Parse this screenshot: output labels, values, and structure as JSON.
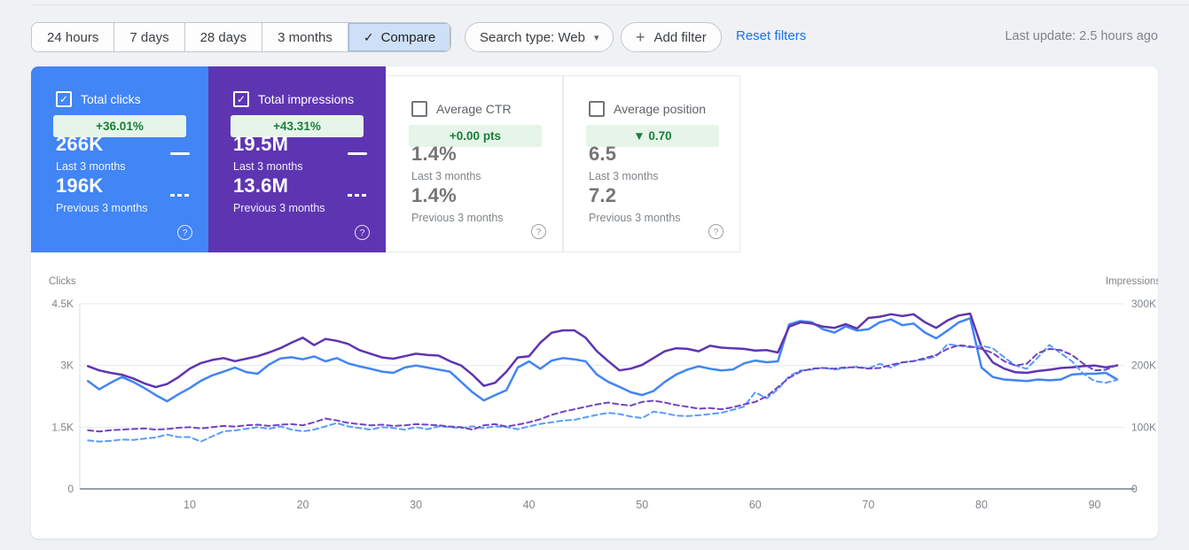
{
  "toolbar": {
    "date_ranges": [
      {
        "label": "24 hours",
        "selected": false
      },
      {
        "label": "7 days",
        "selected": false
      },
      {
        "label": "28 days",
        "selected": false
      },
      {
        "label": "3 months",
        "selected": false
      },
      {
        "label": "Compare",
        "selected": true,
        "check_icon": "✓"
      }
    ],
    "search_type_label": "Search type: Web",
    "search_type_caret": "▾",
    "add_filter_label": "Add filter",
    "add_filter_plus": "+",
    "reset_filters_label": "Reset filters",
    "last_update": "Last update: 2.5 hours ago"
  },
  "cards": [
    {
      "label": "Total clicks",
      "checked": true,
      "check_glyph": "✓",
      "delta": "+36.01%",
      "current": "266K",
      "current_label": "Last 3 months",
      "previous": "196K",
      "previous_label": "Previous 3 months",
      "accent": "#4285f4"
    },
    {
      "label": "Total impressions",
      "checked": true,
      "check_glyph": "✓",
      "delta": "+43.31%",
      "current": "19.5M",
      "current_label": "Last 3 months",
      "previous": "13.6M",
      "previous_label": "Previous 3 months",
      "accent": "#5e35b1"
    },
    {
      "label": "Average CTR",
      "checked": false,
      "check_glyph": "",
      "delta": "+0.00 pts",
      "current": "1.4%",
      "current_label": "Last 3 months",
      "previous": "1.4%",
      "previous_label": "Previous 3 months",
      "accent": "#ffffff"
    },
    {
      "label": "Average position",
      "checked": false,
      "check_glyph": "",
      "delta": "▼ 0.70",
      "current": "6.5",
      "current_label": "Last 3 months",
      "previous": "7.2",
      "previous_label": "Previous 3 months",
      "accent": "#ffffff"
    }
  ],
  "help_glyph": "?",
  "badge_colors": {
    "bg": "#e6f4ea",
    "text": "#188038"
  },
  "chart_data": {
    "type": "line",
    "x_unit": "day",
    "x_range": [
      1,
      92
    ],
    "x_ticks": [
      10,
      20,
      30,
      40,
      50,
      60,
      70,
      80,
      90
    ],
    "left_axis": {
      "label": "Clicks",
      "ticks": [
        "4.5K",
        "3K",
        "1.5K",
        "0"
      ],
      "max": 4500
    },
    "right_axis": {
      "label": "Impressions",
      "ticks": [
        "300K",
        "200K",
        "100K",
        "0"
      ],
      "max": 300
    },
    "grid": true,
    "legend_position": "none",
    "series": [
      {
        "name": "Clicks - Last 3 months",
        "axis": "left",
        "color": "#4285f4",
        "dash": false,
        "values": [
          2620,
          2420,
          2580,
          2720,
          2600,
          2450,
          2280,
          2130,
          2300,
          2450,
          2630,
          2760,
          2850,
          2950,
          2840,
          2800,
          3020,
          3170,
          3200,
          3150,
          3220,
          3100,
          3180,
          3050,
          2980,
          2920,
          2850,
          2820,
          2950,
          3000,
          2950,
          2900,
          2850,
          2600,
          2350,
          2150,
          2280,
          2400,
          2950,
          3100,
          2920,
          3120,
          3180,
          3150,
          3100,
          2780,
          2600,
          2480,
          2350,
          2280,
          2380,
          2600,
          2780,
          2900,
          2980,
          2920,
          2880,
          2900,
          3050,
          3120,
          3080,
          3100,
          4000,
          4080,
          4050,
          3880,
          3800,
          3950,
          3850,
          3880,
          4050,
          4120,
          3980,
          4020,
          3800,
          3660,
          3850,
          4050,
          4150,
          2950,
          2720,
          2660,
          2640,
          2620,
          2660,
          2640,
          2660,
          2780,
          2800,
          2800,
          2820,
          2660
        ]
      },
      {
        "name": "Impressions - Last 3 months",
        "axis": "right",
        "color": "#5e35b1",
        "dash": false,
        "values": [
          199,
          192,
          188,
          185,
          179,
          171,
          165,
          170,
          181,
          195,
          204,
          209,
          212,
          207,
          211,
          215,
          221,
          228,
          237,
          245,
          233,
          243,
          240,
          235,
          225,
          219,
          213,
          211,
          215,
          219,
          217,
          216,
          207,
          200,
          185,
          167,
          172,
          190,
          213,
          215,
          237,
          253,
          257,
          257,
          245,
          223,
          207,
          192,
          195,
          201,
          212,
          223,
          228,
          227,
          223,
          232,
          229,
          228,
          227,
          224,
          225,
          221,
          263,
          270,
          268,
          263,
          261,
          267,
          260,
          277,
          279,
          283,
          280,
          283,
          270,
          261,
          273,
          281,
          284,
          230,
          205,
          195,
          189,
          188,
          191,
          193,
          196,
          197,
          199,
          200,
          197,
          200
        ]
      },
      {
        "name": "Clicks - Previous 3 months",
        "axis": "left",
        "color": "#5a9cf8",
        "dash": true,
        "values": [
          1180,
          1150,
          1170,
          1200,
          1190,
          1220,
          1250,
          1320,
          1260,
          1260,
          1150,
          1280,
          1400,
          1420,
          1460,
          1500,
          1460,
          1520,
          1440,
          1400,
          1440,
          1520,
          1600,
          1520,
          1480,
          1440,
          1500,
          1480,
          1440,
          1500,
          1450,
          1520,
          1500,
          1480,
          1520,
          1480,
          1520,
          1500,
          1450,
          1520,
          1580,
          1620,
          1660,
          1680,
          1740,
          1800,
          1850,
          1820,
          1760,
          1720,
          1880,
          1840,
          1780,
          1770,
          1790,
          1820,
          1850,
          1920,
          2000,
          2350,
          2200,
          2420,
          2740,
          2880,
          2900,
          2950,
          2900,
          2940,
          2970,
          2930,
          3040,
          2950,
          3080,
          3110,
          3150,
          3220,
          3520,
          3480,
          3440,
          3480,
          3420,
          3200,
          3000,
          2920,
          3200,
          3500,
          3300,
          3100,
          2800,
          2620,
          2580,
          2650
        ]
      },
      {
        "name": "Impressions - Previous 3 months",
        "axis": "right",
        "color": "#7044c4",
        "dash": true,
        "values": [
          95,
          93,
          95,
          96,
          97,
          98,
          96,
          97,
          99,
          100,
          98,
          100,
          102,
          101,
          103,
          104,
          102,
          104,
          105,
          103,
          108,
          114,
          111,
          107,
          105,
          103,
          104,
          102,
          103,
          105,
          104,
          103,
          101,
          100,
          96,
          103,
          105,
          101,
          104,
          108,
          113,
          120,
          125,
          129,
          133,
          137,
          140,
          137,
          135,
          141,
          143,
          140,
          136,
          133,
          130,
          131,
          129,
          132,
          137,
          141,
          150,
          165,
          180,
          190,
          195,
          196,
          195,
          197,
          197,
          195,
          196,
          201,
          205,
          207,
          212,
          217,
          227,
          233,
          231,
          227,
          220,
          207,
          200,
          203,
          220,
          227,
          225,
          217,
          203,
          192,
          193,
          201
        ]
      }
    ]
  }
}
